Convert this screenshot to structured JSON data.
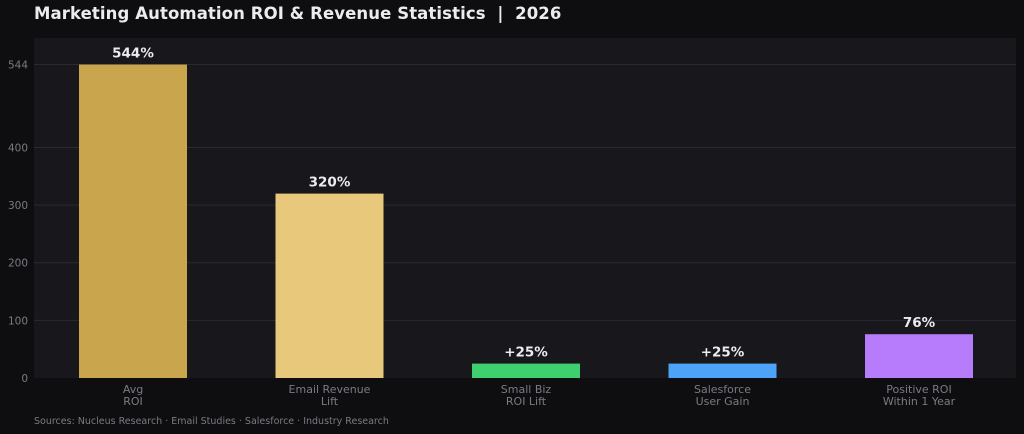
{
  "chart_data": {
    "type": "bar",
    "title": "Marketing Automation ROI & Revenue Statistics  |  2026",
    "categories": [
      [
        "Avg",
        "ROI"
      ],
      [
        "Email Revenue",
        "Lift"
      ],
      [
        "Small Biz",
        "ROI Lift"
      ],
      [
        "Salesforce",
        "User Gain"
      ],
      [
        "Positive ROI",
        "Within 1 Year"
      ]
    ],
    "values": [
      544,
      320,
      25,
      25,
      76
    ],
    "data_labels": [
      "544%",
      "320%",
      "+25%",
      "+25%",
      "76%"
    ],
    "colors": [
      "#c9a64e",
      "#e8c87a",
      "#3ecf6e",
      "#4da3f7",
      "#b77cfc"
    ],
    "yticks": [
      0,
      100,
      200,
      300,
      400,
      544
    ],
    "ylim": [
      0,
      590
    ],
    "grid": true,
    "source": "Sources: Nucleus Research · Email Studies · Salesforce · Industry Research"
  },
  "theme": {
    "page_bg": "#0e0e11",
    "plot_bg": "#18171c",
    "grid": "#2a2a30",
    "tick_text": "#7a7a83",
    "label_text": "#ececef"
  }
}
